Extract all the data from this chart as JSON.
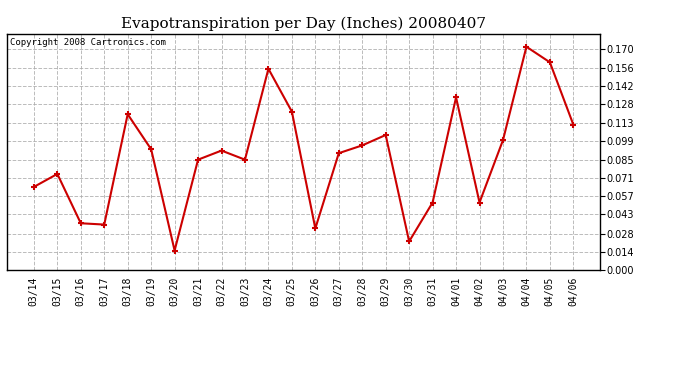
{
  "title": "Evapotranspiration per Day (Inches) 20080407",
  "copyright_text": "Copyright 2008 Cartronics.com",
  "dates": [
    "03/14",
    "03/15",
    "03/16",
    "03/17",
    "03/18",
    "03/19",
    "03/20",
    "03/21",
    "03/22",
    "03/23",
    "03/24",
    "03/25",
    "03/26",
    "03/27",
    "03/28",
    "03/29",
    "03/30",
    "03/31",
    "04/01",
    "04/02",
    "04/03",
    "04/04",
    "04/05",
    "04/06"
  ],
  "values": [
    0.064,
    0.074,
    0.036,
    0.035,
    0.12,
    0.093,
    0.015,
    0.085,
    0.092,
    0.085,
    0.155,
    0.122,
    0.032,
    0.09,
    0.096,
    0.104,
    0.022,
    0.052,
    0.133,
    0.052,
    0.1,
    0.172,
    0.16,
    0.112
  ],
  "line_color": "#cc0000",
  "marker": "+",
  "marker_size": 5,
  "marker_edge_width": 1.5,
  "line_width": 1.5,
  "ylim": [
    0.0,
    0.182
  ],
  "yticks": [
    0.0,
    0.014,
    0.028,
    0.043,
    0.057,
    0.071,
    0.085,
    0.099,
    0.113,
    0.128,
    0.142,
    0.156,
    0.17
  ],
  "bg_color": "#ffffff",
  "grid_color": "#aaaaaa",
  "title_fontsize": 11,
  "copyright_fontsize": 6.5,
  "tick_fontsize": 7,
  "border_color": "#000000"
}
